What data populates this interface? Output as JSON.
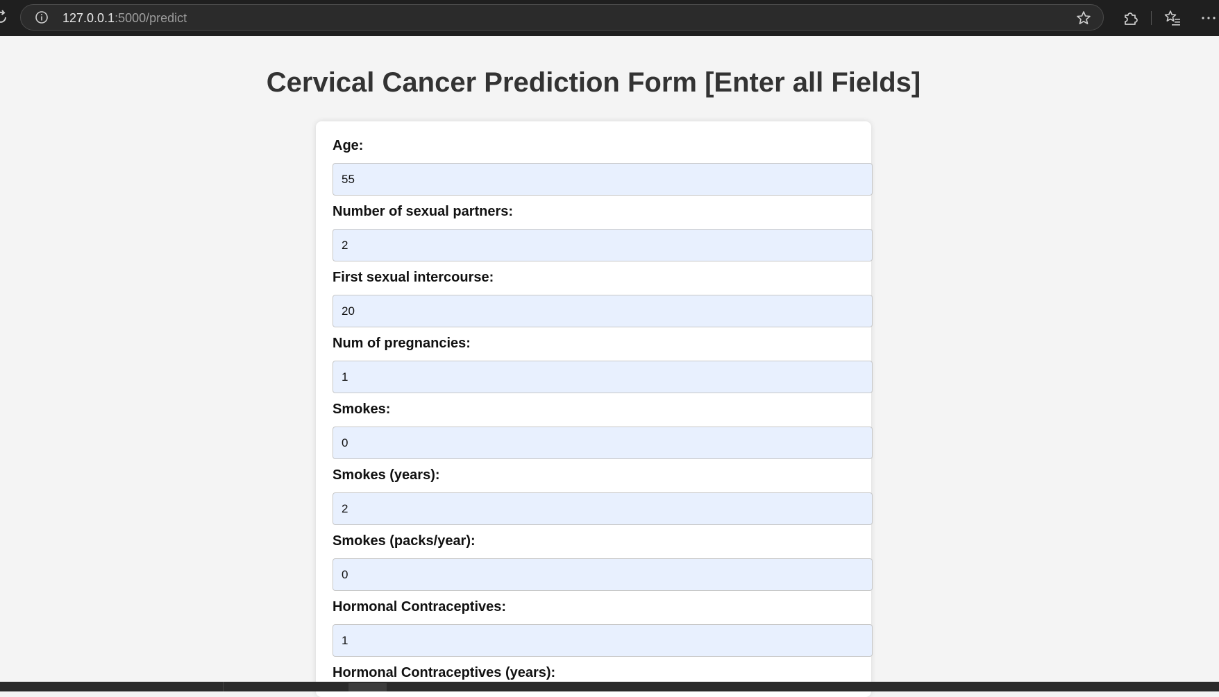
{
  "browser": {
    "url_host": "127.0.0.1",
    "url_path": ":5000/predict"
  },
  "page": {
    "title": "Cervical Cancer Prediction Form [Enter all Fields]"
  },
  "form": {
    "fields": [
      {
        "label": "Age:",
        "value": "55"
      },
      {
        "label": "Number of sexual partners:",
        "value": "2"
      },
      {
        "label": "First sexual intercourse:",
        "value": "20"
      },
      {
        "label": "Num of pregnancies:",
        "value": "1"
      },
      {
        "label": "Smokes:",
        "value": "0"
      },
      {
        "label": "Smokes (years):",
        "value": "2"
      },
      {
        "label": "Smokes (packs/year):",
        "value": "0"
      },
      {
        "label": "Hormonal Contraceptives:",
        "value": "1"
      },
      {
        "label": "Hormonal Contraceptives (years):",
        "value": ""
      }
    ]
  },
  "colors": {
    "input_background": "#e8f0fe",
    "page_background": "#f4f4f4",
    "browser_chrome": "#1f1f1f"
  },
  "icons": [
    "reload-icon",
    "info-icon",
    "star-icon",
    "extensions-icon",
    "favorites-icon",
    "more-icon"
  ]
}
